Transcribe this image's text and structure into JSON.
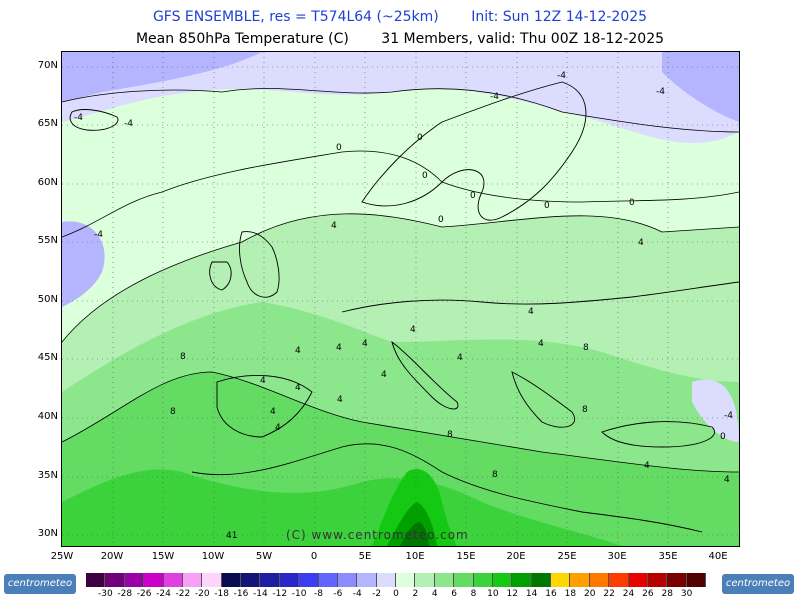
{
  "title": {
    "line1": [
      "GFS ENSEMBLE, res = T574L64 (~25km)",
      "Init: Sun 12Z 14-12-2025"
    ],
    "line2": [
      "Mean 850hPa Temperature (C)",
      "31 Members, valid: Thu 00Z 18-12-2025"
    ]
  },
  "axes": {
    "lat_labels": [
      "70N",
      "65N",
      "60N",
      "55N",
      "50N",
      "45N",
      "40N",
      "35N",
      "30N"
    ],
    "lon_labels": [
      "25W",
      "20W",
      "15W",
      "10W",
      "5W",
      "0",
      "5E",
      "10E",
      "15E",
      "20E",
      "25E",
      "30E",
      "35E",
      "40E"
    ]
  },
  "credit": "(C) www.centrometeo.com",
  "logo_text": "centrometeo",
  "legend": {
    "ticks": [
      "-30",
      "-28",
      "-26",
      "-24",
      "-22",
      "-20",
      "-18",
      "-16",
      "-14",
      "-12",
      "-10",
      "-8",
      "-6",
      "-4",
      "-2",
      "0",
      "2",
      "4",
      "6",
      "8",
      "10",
      "12",
      "14",
      "16",
      "18",
      "20",
      "22",
      "24",
      "26",
      "28",
      "30"
    ],
    "colors": [
      "#3d0040",
      "#6e0078",
      "#9a00a8",
      "#c800c8",
      "#e040e0",
      "#f8a0f8",
      "#fcd4fc",
      "#0a0a50",
      "#141478",
      "#1e1ea0",
      "#2828c8",
      "#3c3cf0",
      "#6464ff",
      "#8c8cff",
      "#b4b4ff",
      "#dcdcff",
      "#dcffdc",
      "#b4f0b4",
      "#8ce68c",
      "#64dc64",
      "#3cd23c",
      "#14c814",
      "#00a000",
      "#007800",
      "#ffd700",
      "#ffa000",
      "#ff7800",
      "#ff3c00",
      "#e60000",
      "#b40000",
      "#780000",
      "#500000"
    ]
  },
  "contour_labels": [
    "-4",
    "-4",
    "-4",
    "-4",
    "-4",
    "-4",
    "0",
    "0",
    "0",
    "0",
    "0",
    "0",
    "0",
    "4",
    "4",
    "4",
    "4",
    "4",
    "4",
    "4",
    "4",
    "4",
    "4",
    "4",
    "4",
    "4",
    "4",
    "4",
    "4",
    "8",
    "8",
    "8",
    "8",
    "8",
    "8",
    "-4",
    "0",
    "4",
    "41"
  ]
}
